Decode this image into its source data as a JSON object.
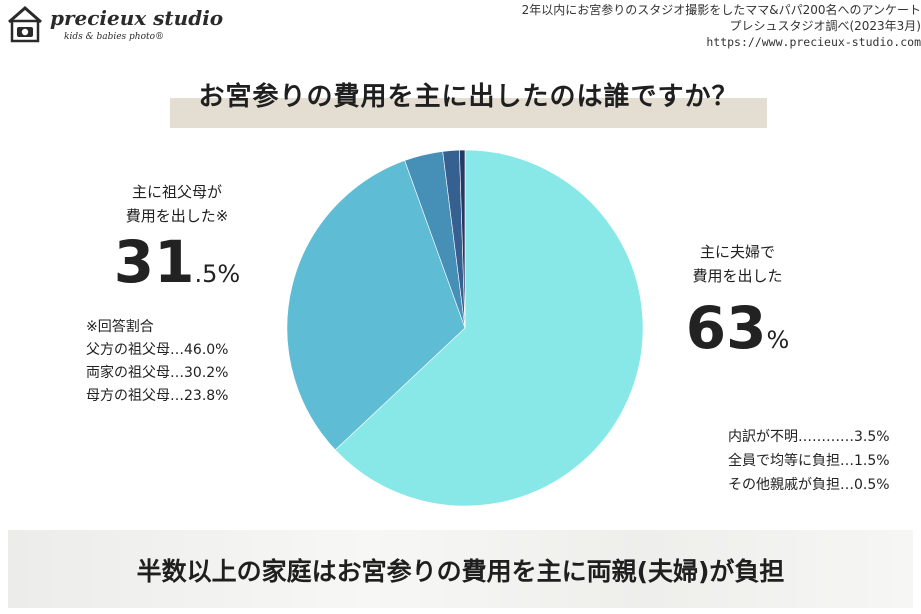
{
  "brand": {
    "name": "precieux studio",
    "tagline": "kids & babies photo®",
    "logo_icon": "house-camera-icon"
  },
  "source": {
    "line1": "2年以内にお宮参りのスタジオ撮影をしたママ&パパ200名へのアンケート",
    "line2": "プレシュスタジオ調べ(2023年3月)",
    "url": "https://www.precieux-studio.com"
  },
  "title": "お宮参りの費用を主に出したのは誰ですか？",
  "chart_data": {
    "type": "pie",
    "slices": [
      {
        "label": "主に夫婦で費用を出した",
        "value": 63.0,
        "color": "#88e8e8"
      },
      {
        "label": "主に祖父母が費用を出した",
        "value": 31.5,
        "color": "#5ebcd4"
      },
      {
        "label": "内訳が不明",
        "value": 3.5,
        "color": "#4690b8"
      },
      {
        "label": "全員で均等に負担",
        "value": 1.5,
        "color": "#36608f"
      },
      {
        "label": "その他親戚が負担",
        "value": 0.5,
        "color": "#243a66"
      }
    ]
  },
  "grandparents": {
    "line1": "主に祖父母が",
    "line2": "費用を出した※",
    "pct_int": "31",
    "pct_suffix": ".5%"
  },
  "couple": {
    "line1": "主に夫婦で",
    "line2": "費用を出した",
    "pct_int": "63",
    "pct_suffix": "%"
  },
  "note": {
    "heading": "※回答割合",
    "items": [
      "父方の祖父母…46.0%",
      "両家の祖父母…30.2%",
      "母方の祖父母…23.8%"
    ]
  },
  "breakdown": [
    "内訳が不明…………3.5%",
    "全員で均等に負担…1.5%",
    "その他親戚が負担…0.5%"
  ],
  "footer": "半数以上の家庭はお宮参りの費用を主に両親(夫婦)が負担"
}
